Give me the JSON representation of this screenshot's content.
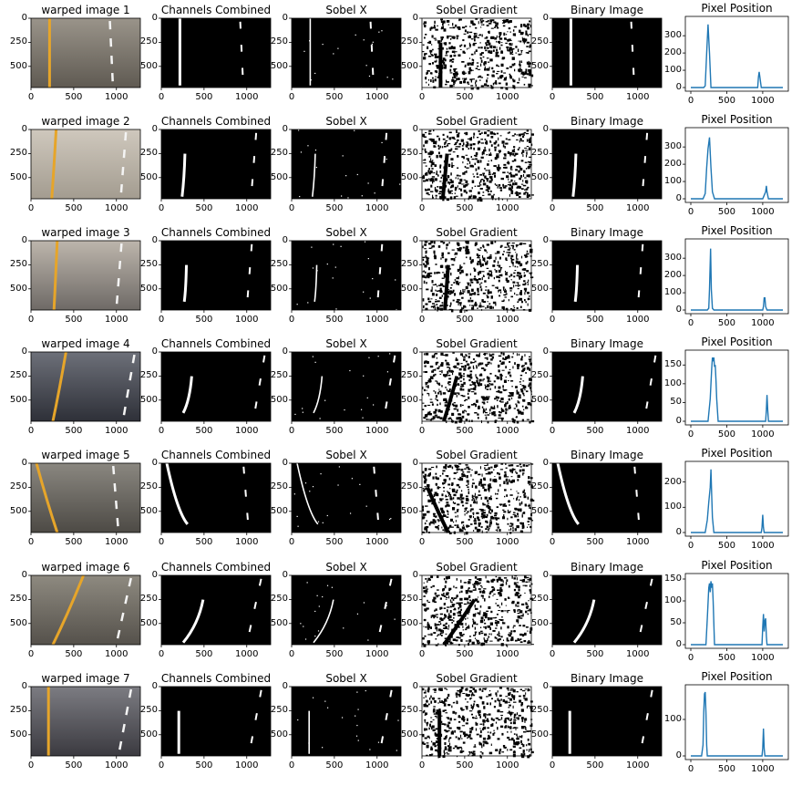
{
  "figure": {
    "column_titles": [
      "Channels Combined",
      "Sobel X",
      "Sobel Gradient",
      "Binary Image"
    ],
    "hist_title": "Pixel Position",
    "row_titles": [
      "warped image 1",
      "warped image 2",
      "warped image 3",
      "warped image 4",
      "warped image 5",
      "warped image 6",
      "warped image 7"
    ],
    "image_x_ticks": [
      "0",
      "500",
      "1000"
    ],
    "image_y_ticks": [
      "0",
      "250",
      "500"
    ],
    "hist_x_ticks": [
      "0",
      "500",
      "1000"
    ],
    "line_color": "#1f77b4"
  },
  "chart_data": [
    {
      "type": "line",
      "title": "Pixel Position",
      "xlim": [
        0,
        1280
      ],
      "ylim": [
        0,
        380
      ],
      "y_ticks": [
        0,
        100,
        200,
        300
      ],
      "series": [
        {
          "x": [
            0,
            180,
            200,
            220,
            240,
            260,
            280,
            900,
            930,
            940,
            950,
            960,
            980,
            1280
          ],
          "y": [
            0,
            0,
            10,
            200,
            365,
            200,
            0,
            0,
            0,
            60,
            90,
            60,
            0,
            0
          ]
        }
      ]
    },
    {
      "type": "line",
      "title": "Pixel Position",
      "xlim": [
        0,
        1280
      ],
      "ylim": [
        0,
        380
      ],
      "y_ticks": [
        0,
        100,
        200,
        300
      ],
      "series": [
        {
          "x": [
            0,
            170,
            200,
            220,
            240,
            260,
            280,
            300,
            330,
            1000,
            1020,
            1040,
            1050,
            1060,
            1080,
            1280
          ],
          "y": [
            0,
            0,
            30,
            180,
            290,
            355,
            180,
            40,
            0,
            0,
            20,
            40,
            75,
            40,
            0,
            0
          ]
        }
      ]
    },
    {
      "type": "line",
      "title": "Pixel Position",
      "xlim": [
        0,
        1280
      ],
      "ylim": [
        0,
        380
      ],
      "y_ticks": [
        0,
        100,
        200,
        300
      ],
      "series": [
        {
          "x": [
            0,
            230,
            250,
            260,
            275,
            285,
            300,
            320,
            1000,
            1010,
            1020,
            1030,
            1040,
            1060,
            1280
          ],
          "y": [
            0,
            0,
            10,
            120,
            355,
            120,
            10,
            0,
            0,
            20,
            70,
            70,
            20,
            0,
            0
          ]
        }
      ]
    },
    {
      "type": "line",
      "title": "Pixel Position",
      "xlim": [
        0,
        1280
      ],
      "ylim": [
        0,
        175
      ],
      "y_ticks": [
        0,
        50,
        100,
        150
      ],
      "series": [
        {
          "x": [
            0,
            240,
            270,
            290,
            300,
            310,
            320,
            330,
            340,
            350,
            360,
            380,
            1040,
            1050,
            1060,
            1070,
            1080,
            1280
          ],
          "y": [
            0,
            0,
            60,
            140,
            170,
            160,
            170,
            145,
            150,
            110,
            60,
            0,
            0,
            30,
            70,
            30,
            0,
            0
          ]
        }
      ]
    },
    {
      "type": "line",
      "title": "Pixel Position",
      "xlim": [
        0,
        1280
      ],
      "ylim": [
        0,
        260
      ],
      "y_ticks": [
        0,
        100,
        200
      ],
      "series": [
        {
          "x": [
            0,
            200,
            230,
            250,
            270,
            280,
            290,
            300,
            320,
            980,
            990,
            1000,
            1010,
            1020,
            1280
          ],
          "y": [
            0,
            0,
            50,
            120,
            180,
            250,
            150,
            60,
            0,
            0,
            20,
            70,
            20,
            0,
            0
          ]
        }
      ]
    },
    {
      "type": "line",
      "title": "Pixel Position",
      "xlim": [
        0,
        1280
      ],
      "ylim": [
        0,
        150
      ],
      "y_ticks": [
        0,
        50,
        100,
        150
      ],
      "series": [
        {
          "x": [
            0,
            210,
            230,
            250,
            260,
            270,
            280,
            290,
            300,
            310,
            330,
            990,
            1000,
            1010,
            1020,
            1030,
            1040,
            1050,
            1060,
            1280
          ],
          "y": [
            0,
            0,
            60,
            130,
            140,
            120,
            145,
            130,
            140,
            100,
            0,
            0,
            40,
            70,
            30,
            55,
            60,
            20,
            0,
            0
          ]
        }
      ]
    },
    {
      "type": "line",
      "title": "Pixel Position",
      "xlim": [
        0,
        1280
      ],
      "ylim": [
        0,
        180
      ],
      "y_ticks": [
        0,
        100
      ],
      "series": [
        {
          "x": [
            0,
            150,
            170,
            180,
            190,
            200,
            210,
            220,
            230,
            990,
            1000,
            1010,
            1020,
            1030,
            1280
          ],
          "y": [
            0,
            0,
            30,
            120,
            170,
            175,
            120,
            30,
            0,
            0,
            20,
            75,
            20,
            0,
            0
          ]
        }
      ]
    }
  ]
}
